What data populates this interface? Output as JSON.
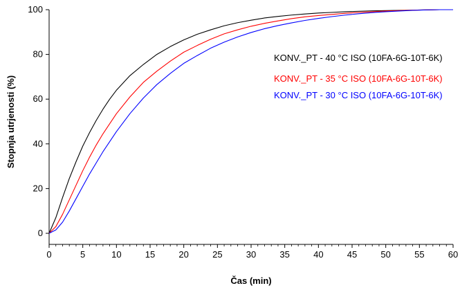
{
  "chart_data": {
    "type": "line",
    "title": "",
    "xlabel": "Čas (min)",
    "ylabel": "Stopnja utrjenosti (%)",
    "xlim": [
      0,
      60
    ],
    "ylim": [
      0,
      100
    ],
    "x_ticks": [
      "0",
      "5",
      "10",
      "15",
      "20",
      "25",
      "30",
      "35",
      "40",
      "45",
      "50",
      "55",
      "60"
    ],
    "y_ticks": [
      "0",
      "20",
      "40",
      "60",
      "80",
      "100"
    ],
    "grid": false,
    "legend_position": "right",
    "x": [
      0,
      1,
      2,
      3,
      4,
      5,
      6,
      7,
      8,
      9,
      10,
      12,
      14,
      16,
      18,
      20,
      22,
      24,
      26,
      28,
      30,
      32,
      34,
      36,
      38,
      40,
      42,
      44,
      46,
      48,
      50,
      52,
      54,
      56,
      58,
      60
    ],
    "series": [
      {
        "name": "KONV._PT - 40 °C ISO (10FA-6G-10T-6K)",
        "color": "#000000",
        "values": [
          0,
          7,
          16,
          24.5,
          32,
          39,
          45,
          50.5,
          55.5,
          60,
          64,
          70.5,
          75.5,
          80,
          83.5,
          86.5,
          89,
          91,
          92.8,
          94.2,
          95.3,
          96.3,
          97,
          97.6,
          98.1,
          98.5,
          98.8,
          99.1,
          99.3,
          99.5,
          99.6,
          99.7,
          99.8,
          99.9,
          100,
          100
        ]
      },
      {
        "name": "KONV._PT - 35 °C ISO (10FA-6G-10T-6K)",
        "color": "#ff0000",
        "values": [
          0,
          3,
          8.5,
          15,
          21.5,
          28,
          34,
          39.5,
          44.5,
          49,
          53.5,
          61,
          67.5,
          72.5,
          77,
          81,
          84,
          86.8,
          89.2,
          91,
          92.6,
          93.9,
          95,
          96,
          96.8,
          97.4,
          97.9,
          98.4,
          98.8,
          99.1,
          99.4,
          99.6,
          99.8,
          99.9,
          100,
          100
        ]
      },
      {
        "name": "KONV._PT - 30 °C ISO (10FA-6G-10T-6K)",
        "color": "#0000ff",
        "values": [
          0,
          1.5,
          5,
          10,
          15.5,
          21,
          26.5,
          31.5,
          36.5,
          41,
          45.5,
          53.5,
          60.5,
          66.5,
          71.5,
          76,
          79.5,
          82.8,
          85.5,
          87.8,
          89.8,
          91.5,
          92.9,
          94.1,
          95.2,
          96.1,
          96.9,
          97.6,
          98.2,
          98.7,
          99.1,
          99.4,
          99.7,
          99.9,
          100,
          100
        ]
      }
    ]
  }
}
